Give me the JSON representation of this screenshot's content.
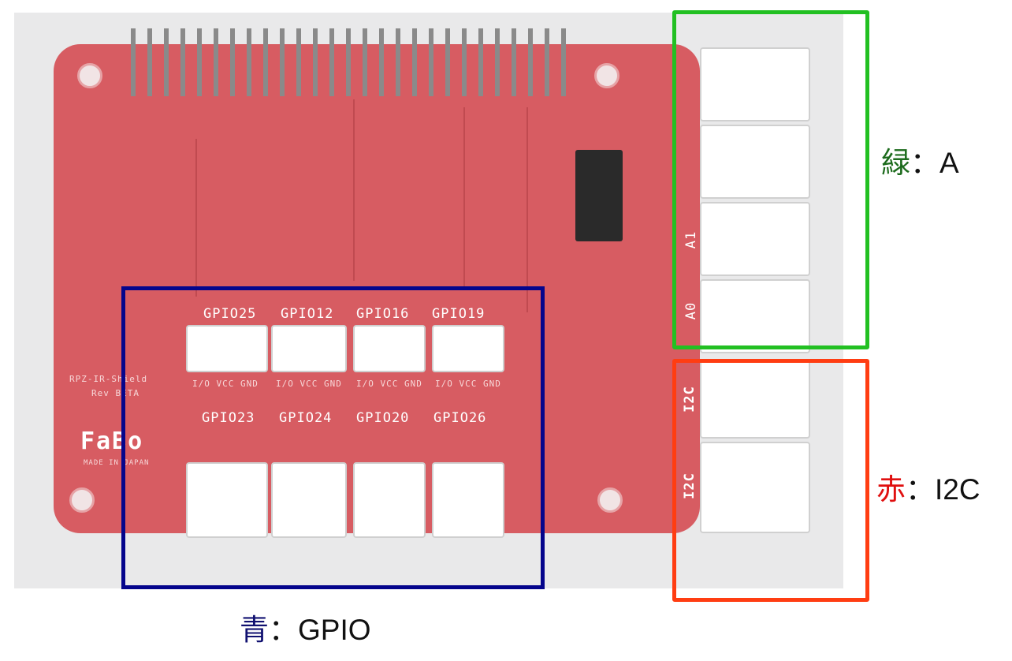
{
  "board": {
    "gpio_top": [
      "GPIO25",
      "GPIO12",
      "GPIO16",
      "GPIO19"
    ],
    "gpio_bottom": [
      "GPIO23",
      "GPIO24",
      "GPIO20",
      "GPIO26"
    ],
    "pin_labels": "I/O VCC GND",
    "analog_labels": [
      "A1",
      "A0"
    ],
    "i2c_labels": [
      "I2C",
      "I2C"
    ],
    "shield_name": "RPZ-IR-Shield",
    "revision": "Rev BETA",
    "brand": "FaBo",
    "made_in": "MADE IN JAPAN"
  },
  "annotations": {
    "green": {
      "kanji": "緑",
      "sep": "：",
      "text": "A",
      "color": "#1c6b1c",
      "box_color": "#22c022"
    },
    "red": {
      "kanji": "赤",
      "sep": "：",
      "text": "I2C",
      "color": "#e01010",
      "box_color": "#ff3d12"
    },
    "blue": {
      "kanji": "青",
      "sep": "：",
      "text": "GPIO",
      "color": "#101070",
      "box_color": "#05058c"
    }
  }
}
